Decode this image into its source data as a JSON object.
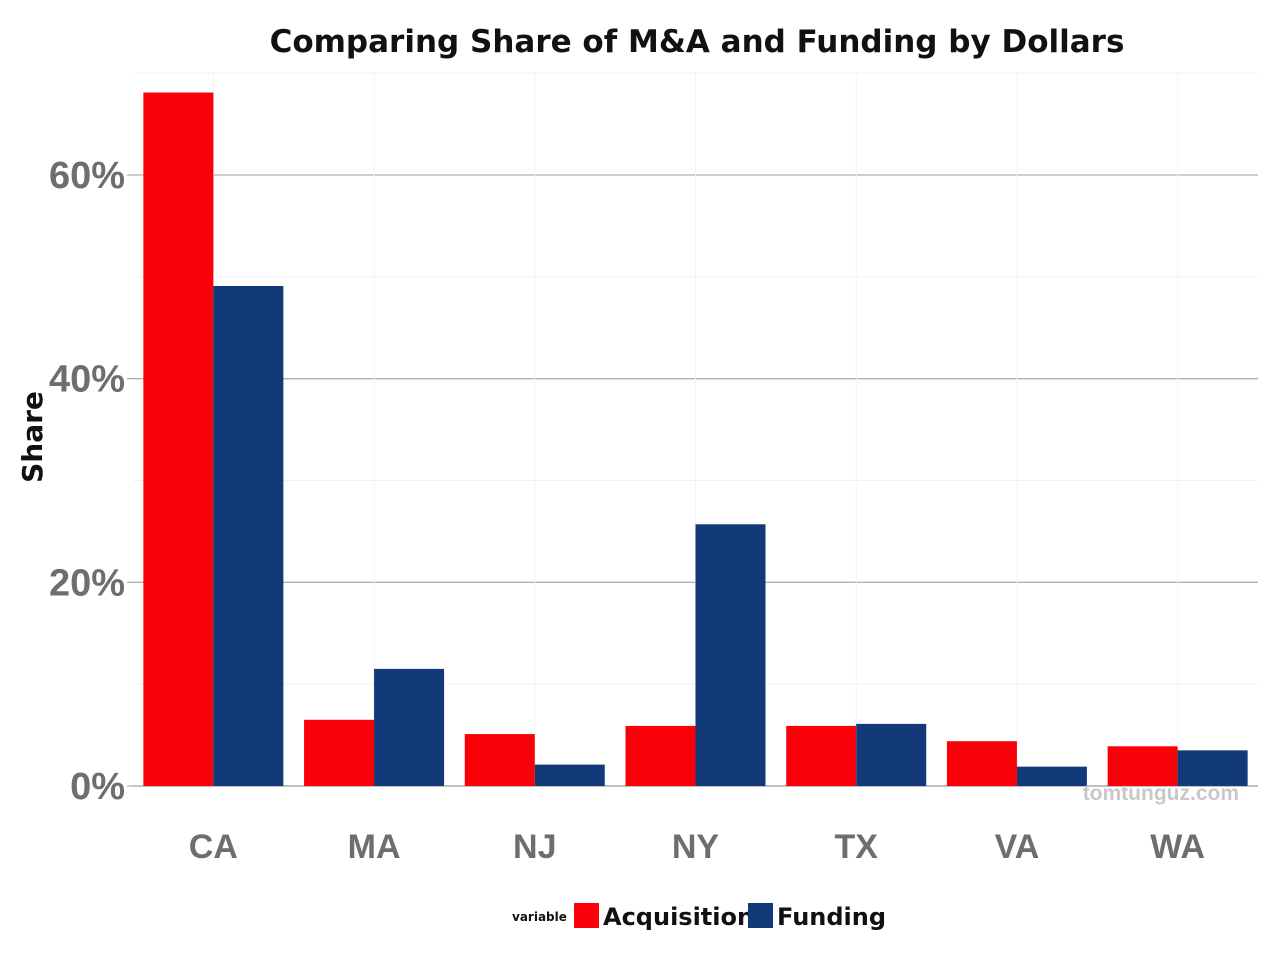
{
  "chart_data": {
    "type": "bar",
    "title": "Comparing Share of M&A and Funding by Dollars",
    "xlabel": "",
    "ylabel": "Share",
    "categories": [
      "CA",
      "MA",
      "NJ",
      "NY",
      "TX",
      "VA",
      "WA"
    ],
    "series": [
      {
        "name": "Acquisition",
        "color": "#fa0008",
        "values": [
          68.1,
          6.5,
          5.1,
          5.9,
          5.9,
          4.4,
          3.9
        ]
      },
      {
        "name": "Funding",
        "color": "#123a78",
        "values": [
          49.1,
          11.5,
          2.1,
          25.7,
          6.1,
          1.9,
          3.5
        ]
      }
    ],
    "ylim": [
      0,
      70
    ],
    "yticks": [
      0,
      20,
      40,
      60
    ],
    "ytick_labels": [
      "0%",
      "20%",
      "40%",
      "60%"
    ],
    "grid": true,
    "legend_title": "variable",
    "legend_position": "bottom",
    "watermark": "tomtunguz.com"
  }
}
